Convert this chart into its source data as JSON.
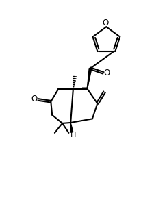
{
  "bg_color": "#ffffff",
  "line_color": "#000000",
  "line_width": 1.5,
  "figsize": [
    2.25,
    2.89
  ],
  "dpi": 100,
  "xlim": [
    -1,
    11
  ],
  "ylim": [
    0,
    14
  ]
}
